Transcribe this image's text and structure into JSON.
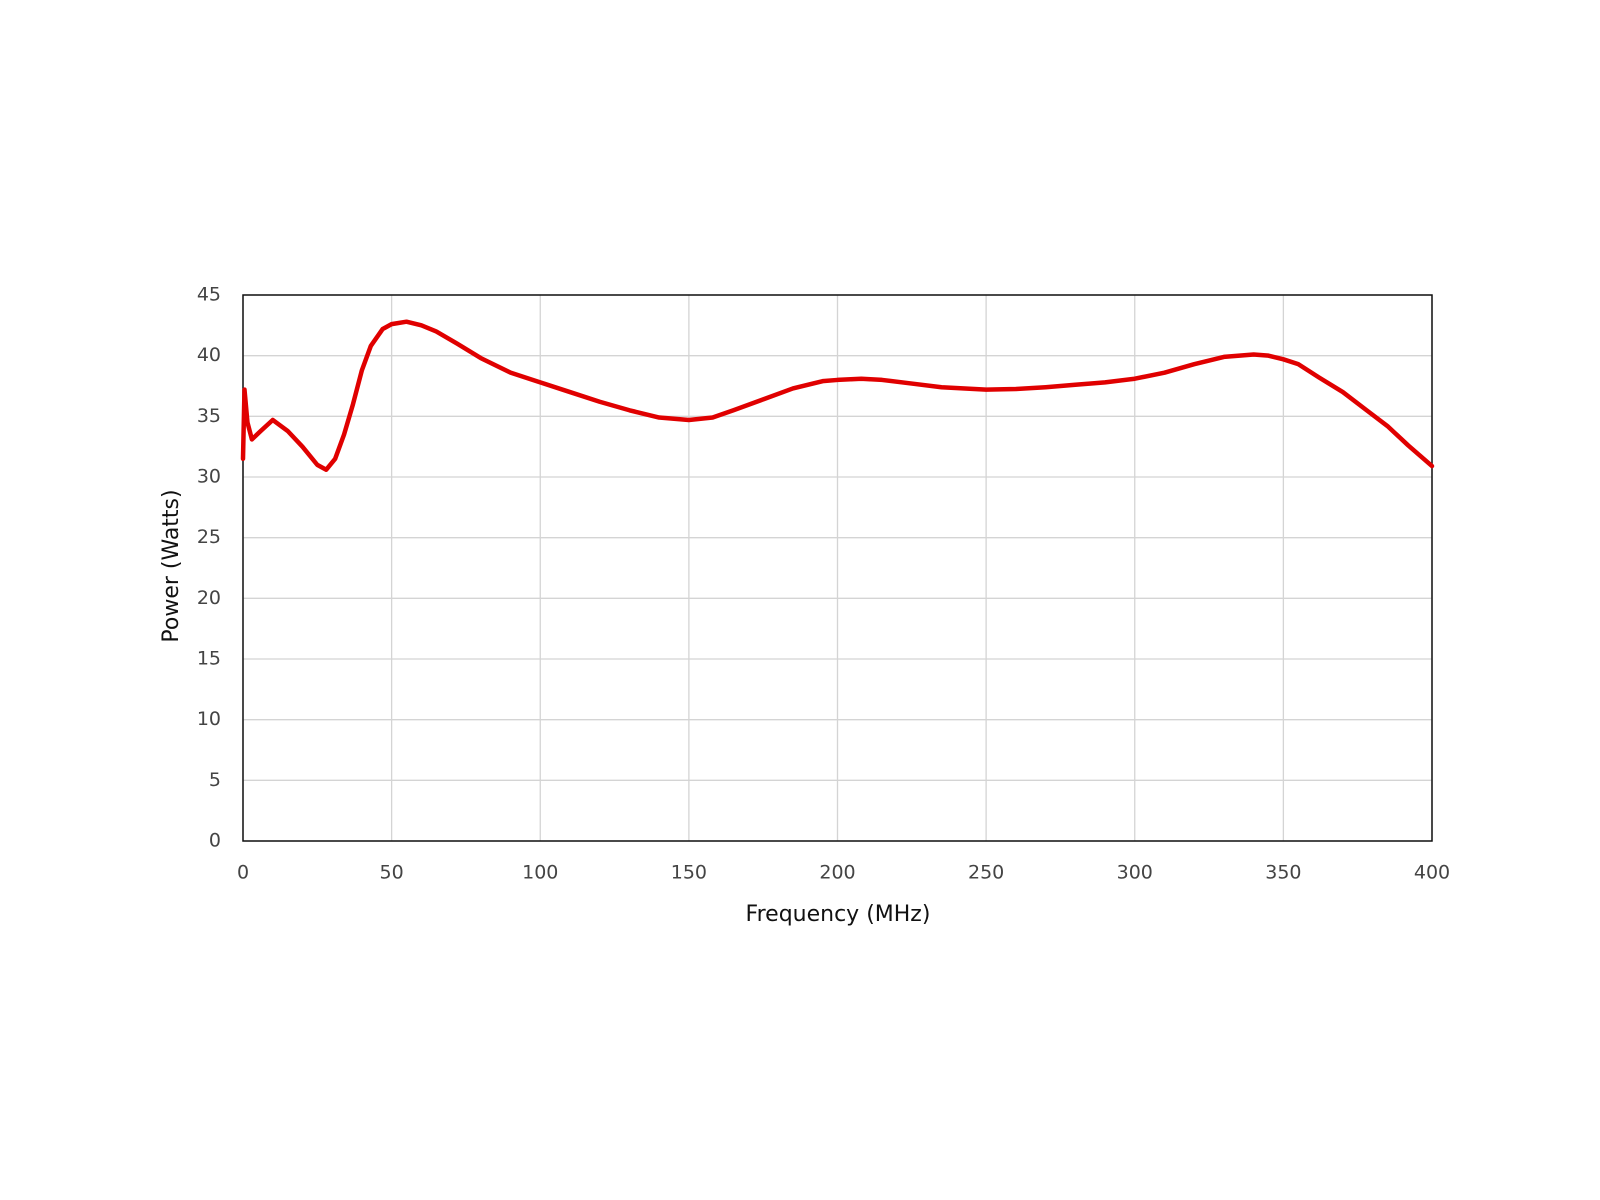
{
  "chart_data": {
    "type": "line",
    "x_label": "Frequency (MHz)",
    "y_label": "Power (Watts)",
    "x": [
      0,
      0.5,
      1.5,
      3,
      6,
      10,
      15,
      20,
      25,
      28,
      31,
      34,
      37,
      40,
      43,
      47,
      50,
      55,
      60,
      65,
      72,
      80,
      90,
      100,
      110,
      120,
      130,
      140,
      150,
      158,
      165,
      175,
      185,
      195,
      200,
      208,
      215,
      225,
      235,
      250,
      260,
      270,
      280,
      290,
      300,
      310,
      320,
      330,
      340,
      345,
      350,
      355,
      362,
      370,
      378,
      385,
      392,
      400
    ],
    "series": [
      {
        "name": "Power",
        "color": "#e00000",
        "values": [
          31.5,
          37.2,
          34.5,
          33.1,
          33.8,
          34.7,
          33.8,
          32.5,
          31.0,
          30.6,
          31.5,
          33.5,
          36.0,
          38.8,
          40.8,
          42.2,
          42.6,
          42.8,
          42.5,
          42.0,
          41.0,
          39.8,
          38.6,
          37.8,
          37.0,
          36.2,
          35.5,
          34.9,
          34.7,
          34.9,
          35.5,
          36.4,
          37.3,
          37.9,
          38.0,
          38.1,
          38.0,
          37.7,
          37.4,
          37.2,
          37.25,
          37.4,
          37.6,
          37.8,
          38.1,
          38.6,
          39.3,
          39.9,
          40.1,
          40.0,
          39.7,
          39.3,
          38.2,
          37.0,
          35.5,
          34.2,
          32.6,
          30.9
        ]
      }
    ],
    "xlim": [
      0,
      400
    ],
    "xticks": [
      0,
      50,
      100,
      150,
      200,
      250,
      300,
      350,
      400
    ],
    "ylim": [
      0,
      45
    ],
    "yticks": [
      0,
      5,
      10,
      15,
      20,
      25,
      30,
      35,
      40,
      45
    ],
    "grid": true
  }
}
